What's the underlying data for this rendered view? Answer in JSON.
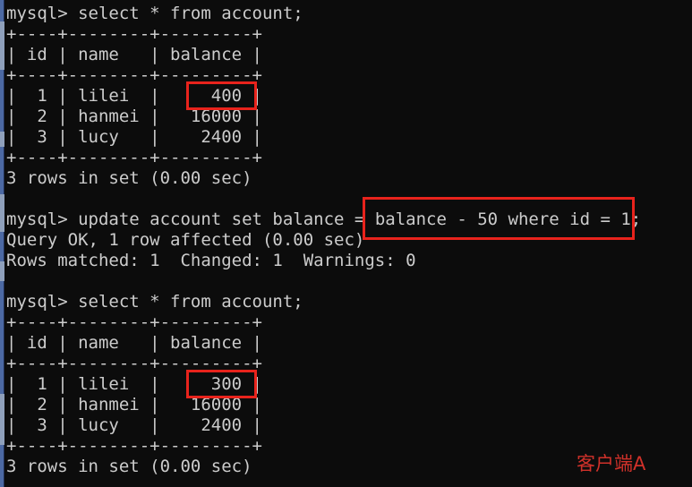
{
  "colors": {
    "background": "#0c0c0c",
    "text": "#cccccc",
    "annotation_box": "#e8231c",
    "client_label_text": "#d0312a",
    "scrollbar": "#4c69a3"
  },
  "console": {
    "first_query": {
      "prompt": "mysql> select * from account;",
      "result_table": {
        "columns": [
          "id",
          "name",
          "balance"
        ],
        "rows": [
          [
            "1",
            "lilei",
            "400"
          ],
          [
            "2",
            "hanmei",
            "16000"
          ],
          [
            "3",
            "lucy",
            "2400"
          ]
        ],
        "border": "+----+--------+---------+",
        "header": "| id | name   | balance |",
        "row_lilei": {
          "pre": "|  1 | lilei  |   ",
          "highlighted": "  400 ",
          "post": "|"
        },
        "row_hanmei": "|  2 | hanmei |   16000 |",
        "row_lucy": "|  3 | lucy   |    2400 |"
      },
      "status": "3 rows in set (0.00 sec)"
    },
    "update_query": {
      "pre": "mysql> update account set balance =",
      "highlighted": " balance - 50 where id = 1",
      "post": ";",
      "result": "Query OK, 1 row affected (0.00 sec)",
      "details": "Rows matched: 1  Changed: 1  Warnings: 0"
    },
    "second_query": {
      "prompt": "mysql> select * from account;",
      "result_table": {
        "columns": [
          "id",
          "name",
          "balance"
        ],
        "rows": [
          [
            "1",
            "lilei",
            "300"
          ],
          [
            "2",
            "hanmei",
            "16000"
          ],
          [
            "3",
            "lucy",
            "2400"
          ]
        ],
        "border": "+----+--------+---------+",
        "header": "| id | name   | balance |",
        "row_lilei": {
          "pre": "|  1 | lilei  |   ",
          "highlighted": "  300 ",
          "post": "|"
        },
        "row_hanmei": "|  2 | hanmei |   16000 |",
        "row_lucy": "|  3 | lucy   |    2400 |"
      },
      "status": "3 rows in set (0.00 sec)"
    }
  },
  "annotation": {
    "client_label": "客户端A"
  }
}
